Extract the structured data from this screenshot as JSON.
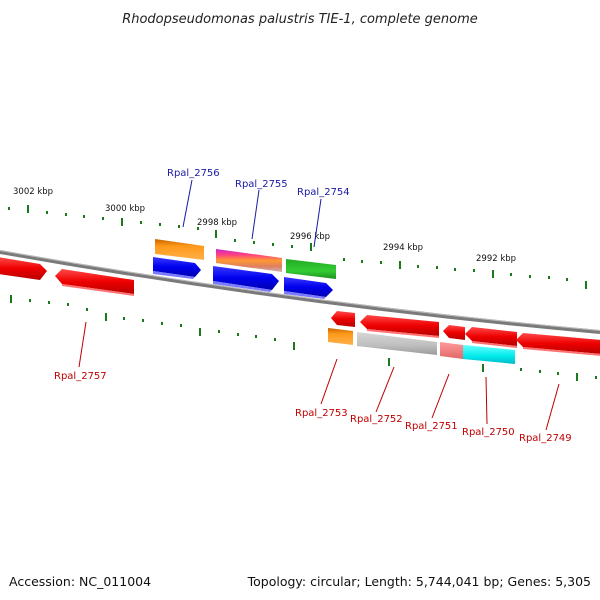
{
  "title": "Rhodopseudomonas palustris TIE-1, complete genome",
  "footer": {
    "accession": "Accession: NC_011004",
    "summary": "Topology: circular; Length: 5,744,041 bp; Genes: 5,305"
  },
  "scale_labels": [
    "3002 kbp",
    "3000 kbp",
    "2998 kbp",
    "2996 kbp",
    "2994 kbp",
    "2992 kbp"
  ],
  "genes_top": [
    "Rpal_2756",
    "Rpal_2755",
    "Rpal_2754"
  ],
  "genes_bottom": [
    "Rpal_2757",
    "Rpal_2753",
    "Rpal_2752",
    "Rpal_2751",
    "Rpal_2750",
    "Rpal_2749"
  ],
  "colors": {
    "forward_strand_gene": "#e00000",
    "reverse_strand_gene": "#0000e0",
    "tick": "#1a7a1a",
    "backbone": "#808080"
  }
}
